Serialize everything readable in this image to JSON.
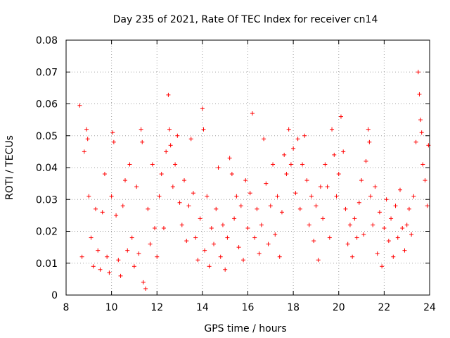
{
  "chart_data": {
    "type": "scatter",
    "title": "Day 235 of 2021, Rate Of TEC Index for receiver cn14",
    "xlabel": "GPS time / hours",
    "ylabel": "ROTI / TECUs",
    "xlim": [
      8,
      24
    ],
    "ylim": [
      0,
      0.08
    ],
    "grid": true,
    "marker": "+",
    "series_color": "#ff0000",
    "x_ticks": [
      {
        "value": 8,
        "label": "8"
      },
      {
        "value": 10,
        "label": "10"
      },
      {
        "value": 12,
        "label": "12"
      },
      {
        "value": 14,
        "label": "14"
      },
      {
        "value": 16,
        "label": "16"
      },
      {
        "value": 18,
        "label": "18"
      },
      {
        "value": 20,
        "label": "20"
      },
      {
        "value": 22,
        "label": "22"
      },
      {
        "value": 24,
        "label": "24"
      }
    ],
    "y_ticks": [
      {
        "value": 0,
        "label": "0"
      },
      {
        "value": 0.01,
        "label": "0.01"
      },
      {
        "value": 0.02,
        "label": "0.02"
      },
      {
        "value": 0.03,
        "label": "0.03"
      },
      {
        "value": 0.04,
        "label": "0.04"
      },
      {
        "value": 0.05,
        "label": "0.05"
      },
      {
        "value": 0.06,
        "label": "0.06"
      },
      {
        "value": 0.07,
        "label": "0.07"
      },
      {
        "value": 0.08,
        "label": "0.08"
      }
    ],
    "points": [
      [
        8.6,
        0.0595
      ],
      [
        8.7,
        0.012
      ],
      [
        8.8,
        0.045
      ],
      [
        8.9,
        0.052
      ],
      [
        8.95,
        0.049
      ],
      [
        9.0,
        0.031
      ],
      [
        9.1,
        0.018
      ],
      [
        9.2,
        0.009
      ],
      [
        9.3,
        0.027
      ],
      [
        9.4,
        0.014
      ],
      [
        9.5,
        0.008
      ],
      [
        9.6,
        0.026
      ],
      [
        9.7,
        0.038
      ],
      [
        9.8,
        0.012
      ],
      [
        9.9,
        0.007
      ],
      [
        10.0,
        0.031
      ],
      [
        10.05,
        0.051
      ],
      [
        10.1,
        0.048
      ],
      [
        10.2,
        0.025
      ],
      [
        10.3,
        0.011
      ],
      [
        10.4,
        0.006
      ],
      [
        10.5,
        0.028
      ],
      [
        10.6,
        0.036
      ],
      [
        10.7,
        0.014
      ],
      [
        10.8,
        0.041
      ],
      [
        10.9,
        0.018
      ],
      [
        11.0,
        0.009
      ],
      [
        11.1,
        0.034
      ],
      [
        11.2,
        0.013
      ],
      [
        11.3,
        0.052
      ],
      [
        11.35,
        0.048
      ],
      [
        11.4,
        0.004
      ],
      [
        11.5,
        0.002
      ],
      [
        11.6,
        0.027
      ],
      [
        11.7,
        0.016
      ],
      [
        11.8,
        0.041
      ],
      [
        11.9,
        0.021
      ],
      [
        12.0,
        0.012
      ],
      [
        12.1,
        0.031
      ],
      [
        12.2,
        0.038
      ],
      [
        12.3,
        0.021
      ],
      [
        12.4,
        0.045
      ],
      [
        12.5,
        0.0628
      ],
      [
        12.55,
        0.052
      ],
      [
        12.6,
        0.047
      ],
      [
        12.7,
        0.034
      ],
      [
        12.8,
        0.041
      ],
      [
        12.9,
        0.05
      ],
      [
        13.0,
        0.029
      ],
      [
        13.1,
        0.022
      ],
      [
        13.2,
        0.036
      ],
      [
        13.3,
        0.017
      ],
      [
        13.4,
        0.028
      ],
      [
        13.5,
        0.049
      ],
      [
        13.6,
        0.032
      ],
      [
        13.7,
        0.018
      ],
      [
        13.8,
        0.011
      ],
      [
        13.9,
        0.024
      ],
      [
        14.0,
        0.0585
      ],
      [
        14.05,
        0.052
      ],
      [
        14.1,
        0.014
      ],
      [
        14.2,
        0.031
      ],
      [
        14.3,
        0.009
      ],
      [
        14.4,
        0.021
      ],
      [
        14.5,
        0.016
      ],
      [
        14.6,
        0.027
      ],
      [
        14.7,
        0.04
      ],
      [
        14.8,
        0.012
      ],
      [
        14.9,
        0.022
      ],
      [
        15.0,
        0.008
      ],
      [
        15.1,
        0.018
      ],
      [
        15.2,
        0.043
      ],
      [
        15.3,
        0.038
      ],
      [
        15.4,
        0.024
      ],
      [
        15.5,
        0.031
      ],
      [
        15.6,
        0.015
      ],
      [
        15.7,
        0.028
      ],
      [
        15.8,
        0.011
      ],
      [
        15.9,
        0.036
      ],
      [
        16.0,
        0.021
      ],
      [
        16.1,
        0.032
      ],
      [
        16.2,
        0.057
      ],
      [
        16.3,
        0.018
      ],
      [
        16.4,
        0.027
      ],
      [
        16.5,
        0.013
      ],
      [
        16.6,
        0.022
      ],
      [
        16.7,
        0.049
      ],
      [
        16.8,
        0.035
      ],
      [
        16.9,
        0.016
      ],
      [
        17.0,
        0.028
      ],
      [
        17.1,
        0.041
      ],
      [
        17.2,
        0.019
      ],
      [
        17.3,
        0.031
      ],
      [
        17.4,
        0.012
      ],
      [
        17.5,
        0.026
      ],
      [
        17.6,
        0.044
      ],
      [
        17.7,
        0.038
      ],
      [
        17.8,
        0.052
      ],
      [
        17.9,
        0.041
      ],
      [
        18.0,
        0.046
      ],
      [
        18.1,
        0.032
      ],
      [
        18.2,
        0.049
      ],
      [
        18.3,
        0.027
      ],
      [
        18.4,
        0.041
      ],
      [
        18.5,
        0.05
      ],
      [
        18.6,
        0.036
      ],
      [
        18.7,
        0.022
      ],
      [
        18.8,
        0.031
      ],
      [
        18.9,
        0.017
      ],
      [
        19.0,
        0.028
      ],
      [
        19.1,
        0.011
      ],
      [
        19.2,
        0.034
      ],
      [
        19.3,
        0.024
      ],
      [
        19.4,
        0.041
      ],
      [
        19.5,
        0.034
      ],
      [
        19.6,
        0.018
      ],
      [
        19.7,
        0.052
      ],
      [
        19.8,
        0.044
      ],
      [
        19.9,
        0.031
      ],
      [
        20.0,
        0.038
      ],
      [
        20.1,
        0.056
      ],
      [
        20.2,
        0.045
      ],
      [
        20.3,
        0.027
      ],
      [
        20.4,
        0.016
      ],
      [
        20.5,
        0.022
      ],
      [
        20.6,
        0.012
      ],
      [
        20.7,
        0.024
      ],
      [
        20.8,
        0.018
      ],
      [
        20.9,
        0.029
      ],
      [
        21.0,
        0.036
      ],
      [
        21.1,
        0.019
      ],
      [
        21.2,
        0.042
      ],
      [
        21.3,
        0.052
      ],
      [
        21.35,
        0.048
      ],
      [
        21.4,
        0.031
      ],
      [
        21.5,
        0.022
      ],
      [
        21.6,
        0.034
      ],
      [
        21.7,
        0.013
      ],
      [
        21.8,
        0.026
      ],
      [
        21.9,
        0.009
      ],
      [
        22.0,
        0.021
      ],
      [
        22.1,
        0.03
      ],
      [
        22.2,
        0.017
      ],
      [
        22.3,
        0.024
      ],
      [
        22.4,
        0.012
      ],
      [
        22.5,
        0.028
      ],
      [
        22.6,
        0.018
      ],
      [
        22.7,
        0.033
      ],
      [
        22.8,
        0.021
      ],
      [
        22.9,
        0.014
      ],
      [
        23.0,
        0.022
      ],
      [
        23.1,
        0.027
      ],
      [
        23.2,
        0.019
      ],
      [
        23.3,
        0.031
      ],
      [
        23.4,
        0.048
      ],
      [
        23.5,
        0.07
      ],
      [
        23.55,
        0.063
      ],
      [
        23.6,
        0.055
      ],
      [
        23.65,
        0.051
      ],
      [
        23.7,
        0.041
      ],
      [
        23.8,
        0.036
      ],
      [
        23.9,
        0.028
      ],
      [
        23.95,
        0.047
      ]
    ]
  }
}
